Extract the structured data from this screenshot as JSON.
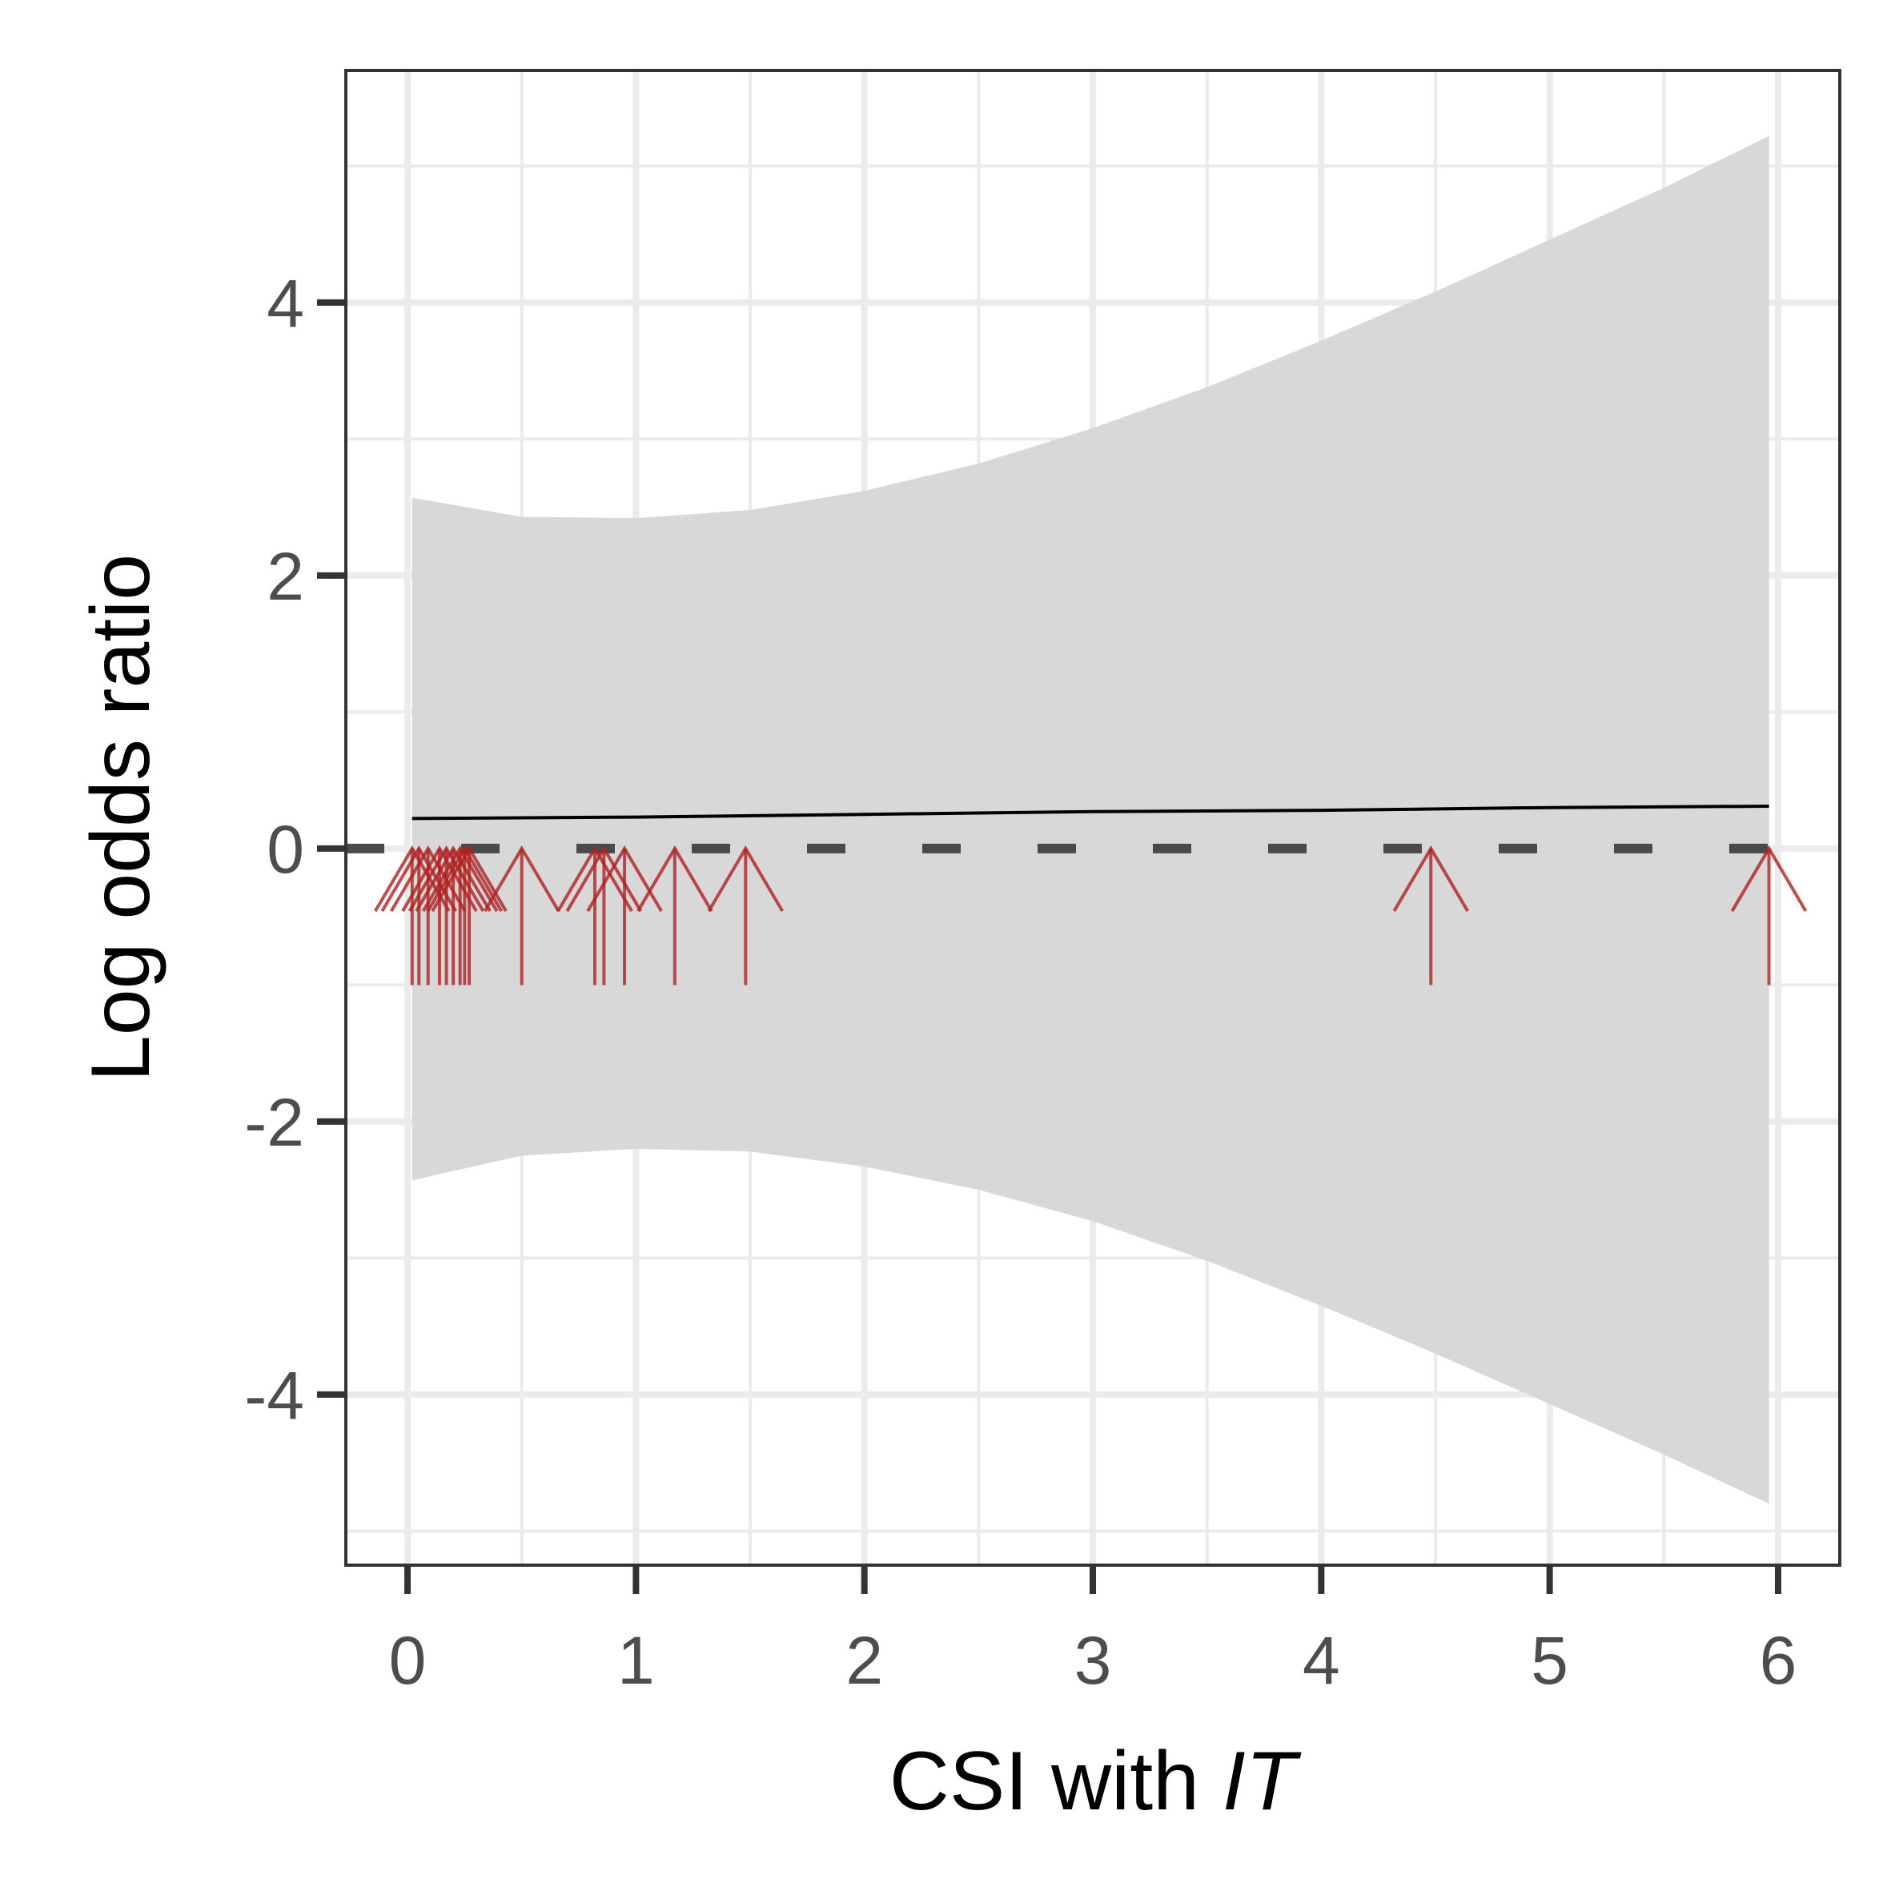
{
  "chart_data": {
    "type": "line",
    "title": "",
    "xlabel": "CSI with",
    "xlabel_italic": "IT",
    "ylabel": "Log odds ratio",
    "xlim": [
      -0.27,
      6.27
    ],
    "ylim": [
      -5.25,
      5.7
    ],
    "x_ticks": [
      0,
      1,
      2,
      3,
      4,
      5,
      6
    ],
    "x_tick_labels": [
      "0",
      "1",
      "2",
      "3",
      "4",
      "5",
      "6"
    ],
    "y_ticks": [
      -4,
      -2,
      0,
      2,
      4
    ],
    "y_tick_labels": [
      "-4",
      "-2",
      "0",
      "2",
      "4"
    ],
    "x_minor_ticks": [
      0.5,
      1.5,
      2.5,
      3.5,
      4.5,
      5.5
    ],
    "y_minor_ticks": [
      -5,
      -3,
      -1,
      1,
      3,
      5
    ],
    "grid": true,
    "legend": "none",
    "estimate_line": {
      "x": [
        0.02,
        1,
        2,
        3,
        4,
        5,
        5.96
      ],
      "y": [
        0.22,
        0.23,
        0.25,
        0.27,
        0.28,
        0.3,
        0.31
      ]
    },
    "confidence_band": {
      "x": [
        0.02,
        0.5,
        1,
        1.5,
        2,
        2.5,
        3,
        3.5,
        4,
        4.5,
        5,
        5.5,
        5.96
      ],
      "upper": [
        2.57,
        2.43,
        2.42,
        2.48,
        2.62,
        2.82,
        3.08,
        3.38,
        3.72,
        4.08,
        4.46,
        4.84,
        5.22
      ],
      "lower": [
        -2.43,
        -2.25,
        -2.2,
        -2.22,
        -2.33,
        -2.5,
        -2.73,
        -3.02,
        -3.35,
        -3.7,
        -4.07,
        -4.44,
        -4.8
      ]
    },
    "reference_line": {
      "y": 0,
      "style": "dashed",
      "color": "#4a4a4a"
    },
    "rug_arrows": {
      "x": [
        0.02,
        0.05,
        0.09,
        0.14,
        0.17,
        0.2,
        0.23,
        0.25,
        0.27,
        0.5,
        0.82,
        0.86,
        0.95,
        1.17,
        1.48,
        4.48,
        5.96
      ],
      "y_top": 0,
      "y_bottom": -1,
      "color": "#b22222"
    },
    "colors": {
      "band": "#d6d6d6",
      "line": "#000000",
      "grid": "#ebebeb",
      "panel_border": "#333333"
    }
  }
}
